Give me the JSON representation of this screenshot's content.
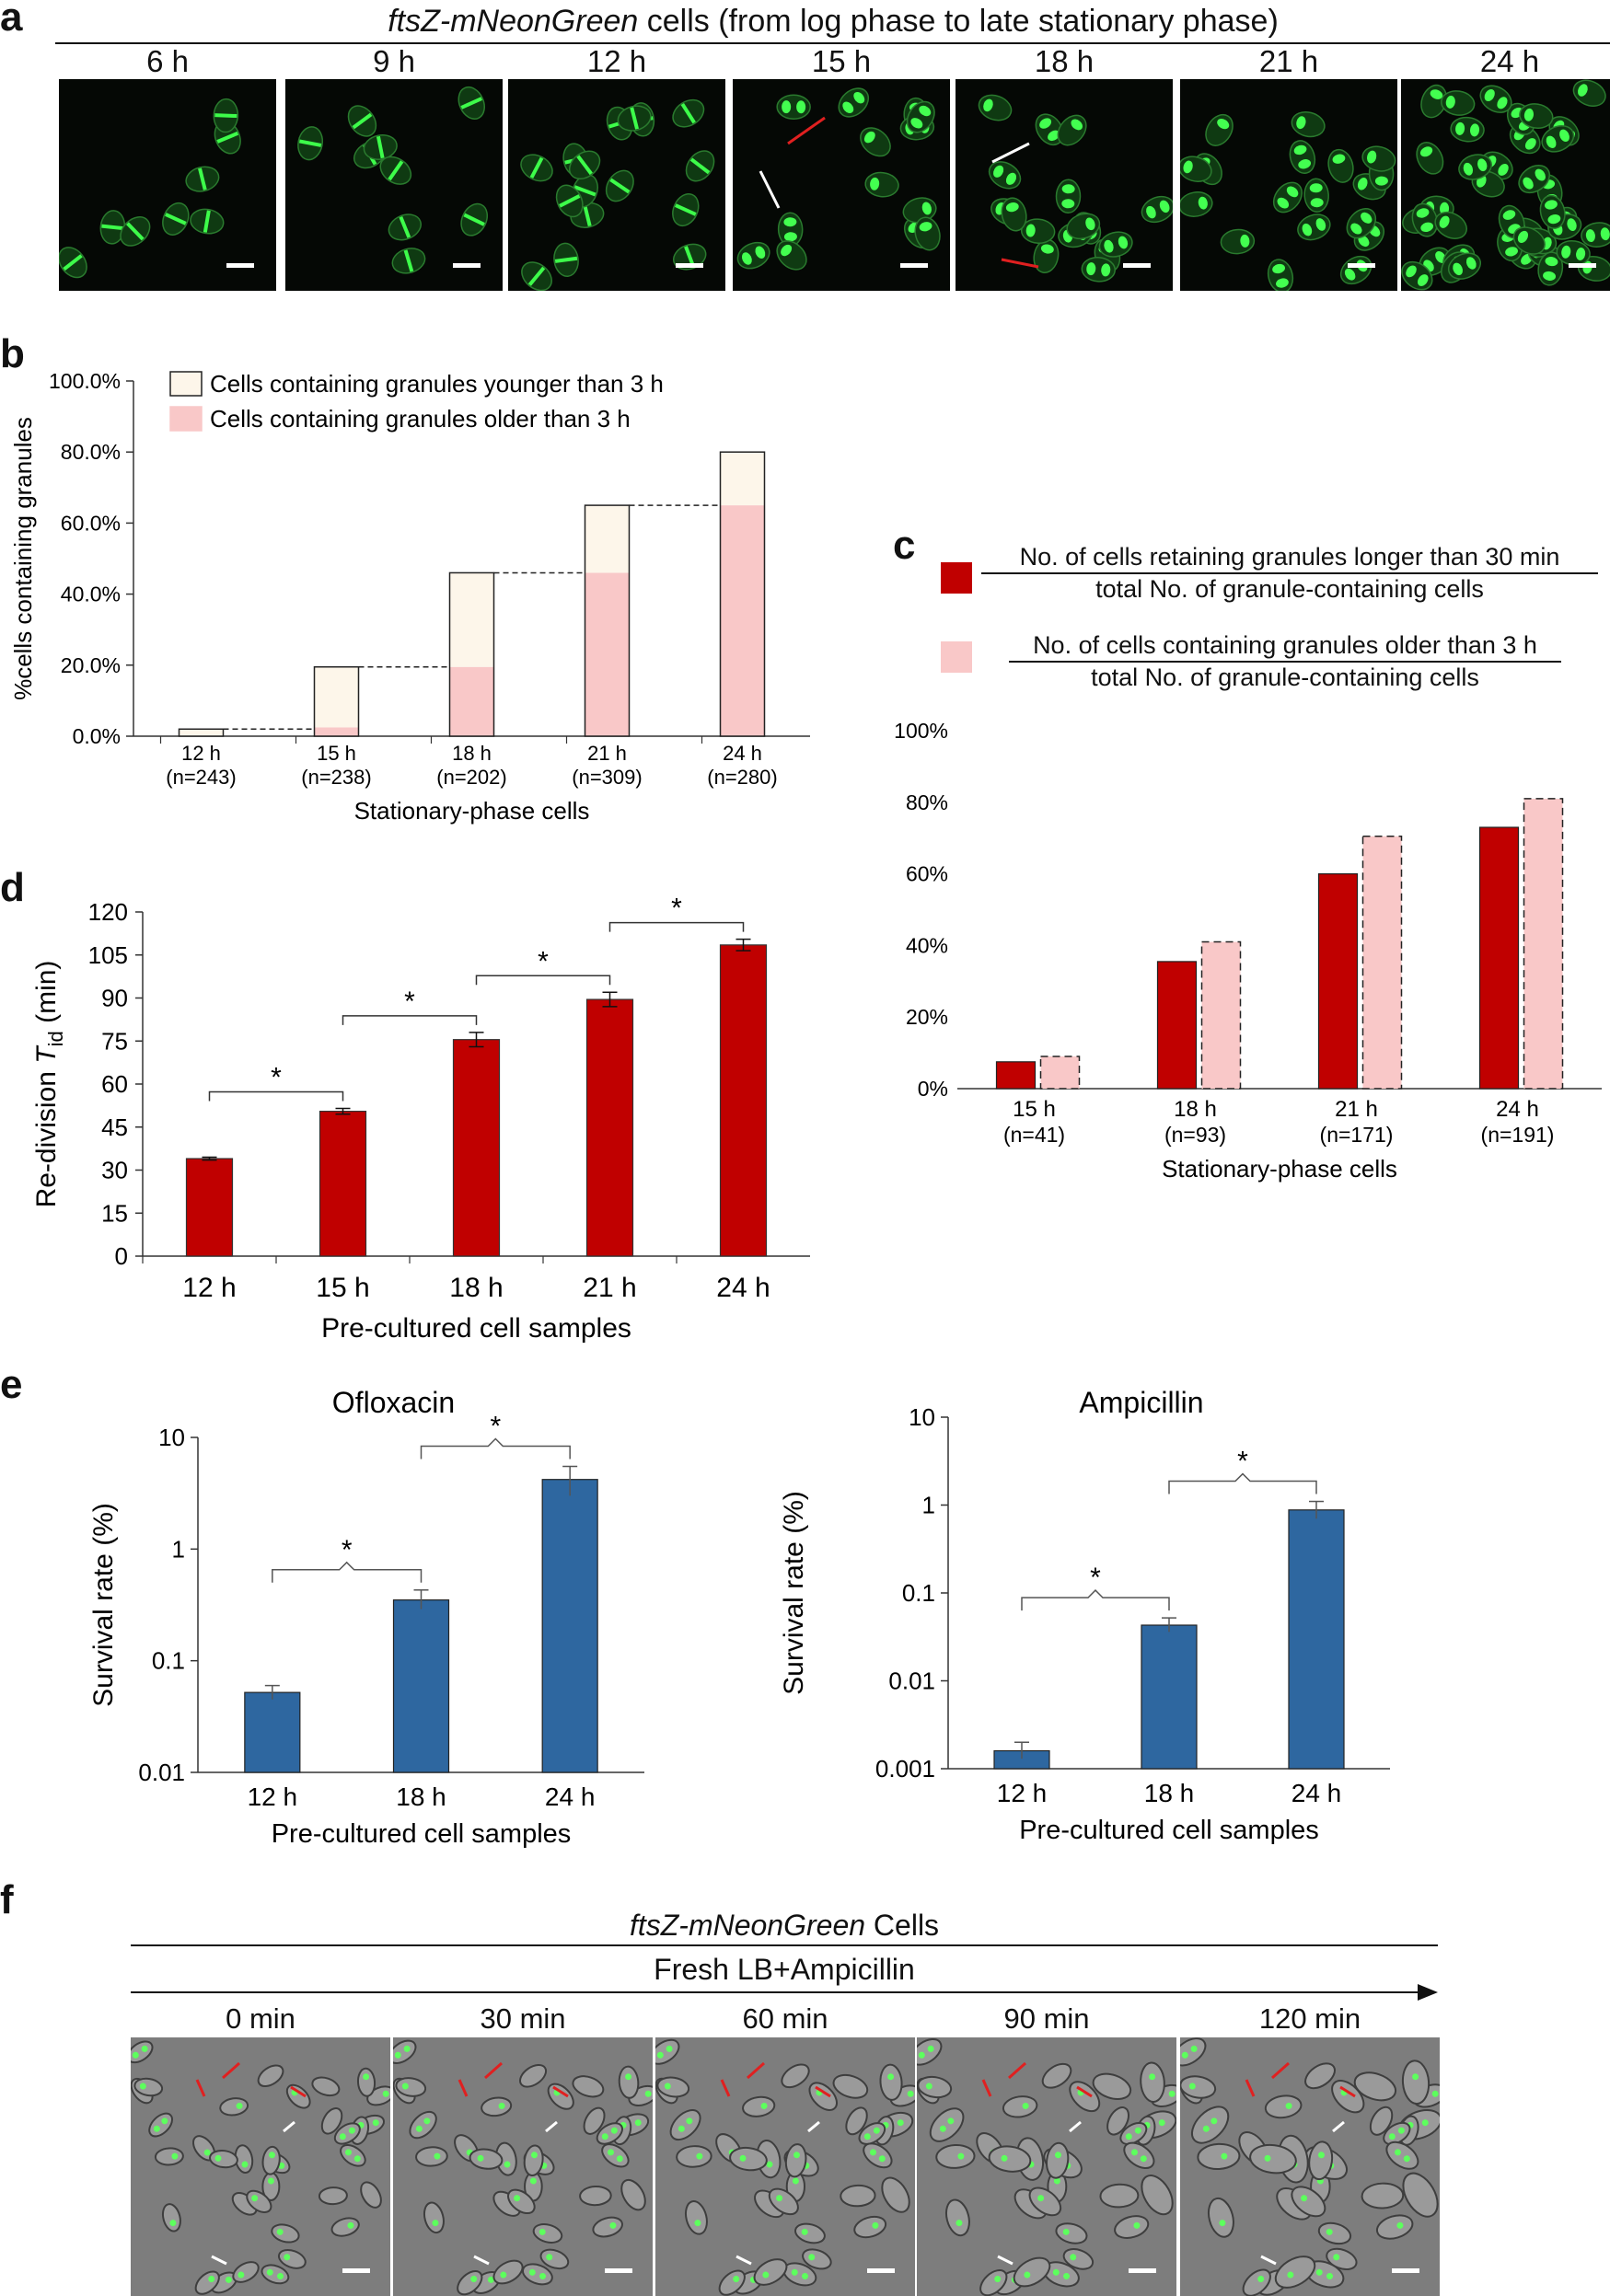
{
  "panel_a": {
    "letter": "a",
    "title_italic": "ftsZ-mNeonGreen",
    "title_rest": " cells (from log phase to late stationary phase)",
    "timepoints": [
      "6 h",
      "9 h",
      "12 h",
      "15 h",
      "18 h",
      "21 h",
      "24 h"
    ]
  },
  "panel_b": {
    "letter": "b",
    "chart_data": {
      "type": "bar",
      "stacked": true,
      "categories": [
        "12 h",
        "15 h",
        "18 h",
        "21 h",
        "24 h"
      ],
      "sample_sizes": [
        "(n=243)",
        "(n=238)",
        "(n=202)",
        "(n=309)",
        "(n=280)"
      ],
      "series": [
        {
          "name": "Cells containing granules older than 3 h",
          "values": [
            0,
            2.5,
            19.5,
            46,
            65
          ],
          "color": "#f9c8c8"
        },
        {
          "name": "Cells containing granules younger than 3 h",
          "values": [
            2,
            17,
            26.5,
            19,
            15
          ],
          "color": "#fdf6ea"
        }
      ],
      "totals": [
        2,
        19.5,
        46,
        65,
        80
      ],
      "ylabel": "%cells containing granules",
      "xlabel": "Stationary-phase cells",
      "ylim": [
        0,
        100
      ],
      "yticks": [
        "0.0%",
        "20.0%",
        "40.0%",
        "60.0%",
        "80.0%",
        "100.0%"
      ]
    }
  },
  "panel_c": {
    "letter": "c",
    "legend": [
      {
        "numerator": "No. of cells retaining granules longer than 30 min",
        "denominator": "total No. of granule-containing cells",
        "color": "#c00000"
      },
      {
        "numerator": "No. of cells containing granules older than 3 h",
        "denominator": "total No. of granule-containing cells",
        "color": "#f9c8c8"
      }
    ],
    "chart_data": {
      "type": "bar",
      "categories": [
        "15 h",
        "18 h",
        "21 h",
        "24 h"
      ],
      "sample_sizes": [
        "(n=41)",
        "(n=93)",
        "(n=171)",
        "(n=191)"
      ],
      "series": [
        {
          "name": "Retaining granules longer than 30 min",
          "values": [
            7.5,
            35.5,
            60,
            73
          ],
          "color": "#c00000"
        },
        {
          "name": "Granules older than 3 h",
          "values": [
            9,
            41,
            70.5,
            81
          ],
          "color": "#f9c8c8"
        }
      ],
      "xlabel": "Stationary-phase cells",
      "ylim": [
        0,
        100
      ],
      "yticks": [
        "0%",
        "20%",
        "40%",
        "60%",
        "80%",
        "100%"
      ]
    }
  },
  "panel_d": {
    "letter": "d",
    "chart_data": {
      "type": "bar",
      "categories": [
        "12 h",
        "15 h",
        "18 h",
        "21 h",
        "24 h"
      ],
      "values": [
        34,
        50.5,
        75.5,
        89.5,
        108.5
      ],
      "errors": [
        0.5,
        1,
        2.5,
        2.5,
        2
      ],
      "ylabel_main": "Re-division ",
      "ylabel_italic": "T",
      "ylabel_sub": "id",
      "ylabel_unit": " (min)",
      "xlabel": "Pre-cultured cell samples",
      "ylim": [
        0,
        120
      ],
      "yticks": [
        "0",
        "15",
        "30",
        "45",
        "60",
        "75",
        "90",
        "105",
        "120"
      ],
      "significance": "*",
      "color": "#c00000"
    }
  },
  "panel_e": {
    "letter": "e",
    "chart_data": [
      {
        "type": "bar",
        "yscale": "log",
        "title": "Ofloxacin",
        "categories": [
          "12 h",
          "18 h",
          "24 h"
        ],
        "values": [
          0.052,
          0.35,
          4.2
        ],
        "err_upper": [
          0.06,
          0.43,
          5.5
        ],
        "err_lower": [
          0.045,
          0.29,
          3.0
        ],
        "ylim": [
          0.01,
          10
        ],
        "yticks": [
          "0.01",
          "0.1",
          "1",
          "10"
        ],
        "ylabel": "Survival rate (%)",
        "xlabel": "Pre-cultured cell samples",
        "significance": "*",
        "color": "#2e67a0"
      },
      {
        "type": "bar",
        "yscale": "log",
        "title": "Ampicillin",
        "categories": [
          "12 h",
          "18 h",
          "24 h"
        ],
        "values": [
          0.0016,
          0.043,
          0.88
        ],
        "err_upper": [
          0.002,
          0.052,
          1.1
        ],
        "err_lower": [
          0.0013,
          0.036,
          0.7
        ],
        "ylim": [
          0.001,
          10
        ],
        "yticks": [
          "0.001",
          "0.01",
          "0.1",
          "1",
          "10"
        ],
        "ylabel": "Survival rate (%)",
        "xlabel": "Pre-cultured cell samples",
        "significance": "*",
        "color": "#2e67a0"
      }
    ]
  },
  "panel_f": {
    "letter": "f",
    "title_italic": "ftsZ-mNeonGreen",
    "title_rest": " Cells",
    "condition": "Fresh LB+Ampicillin",
    "timepoints": [
      "0 min",
      "30 min",
      "60 min",
      "90 min",
      "120 min"
    ]
  }
}
